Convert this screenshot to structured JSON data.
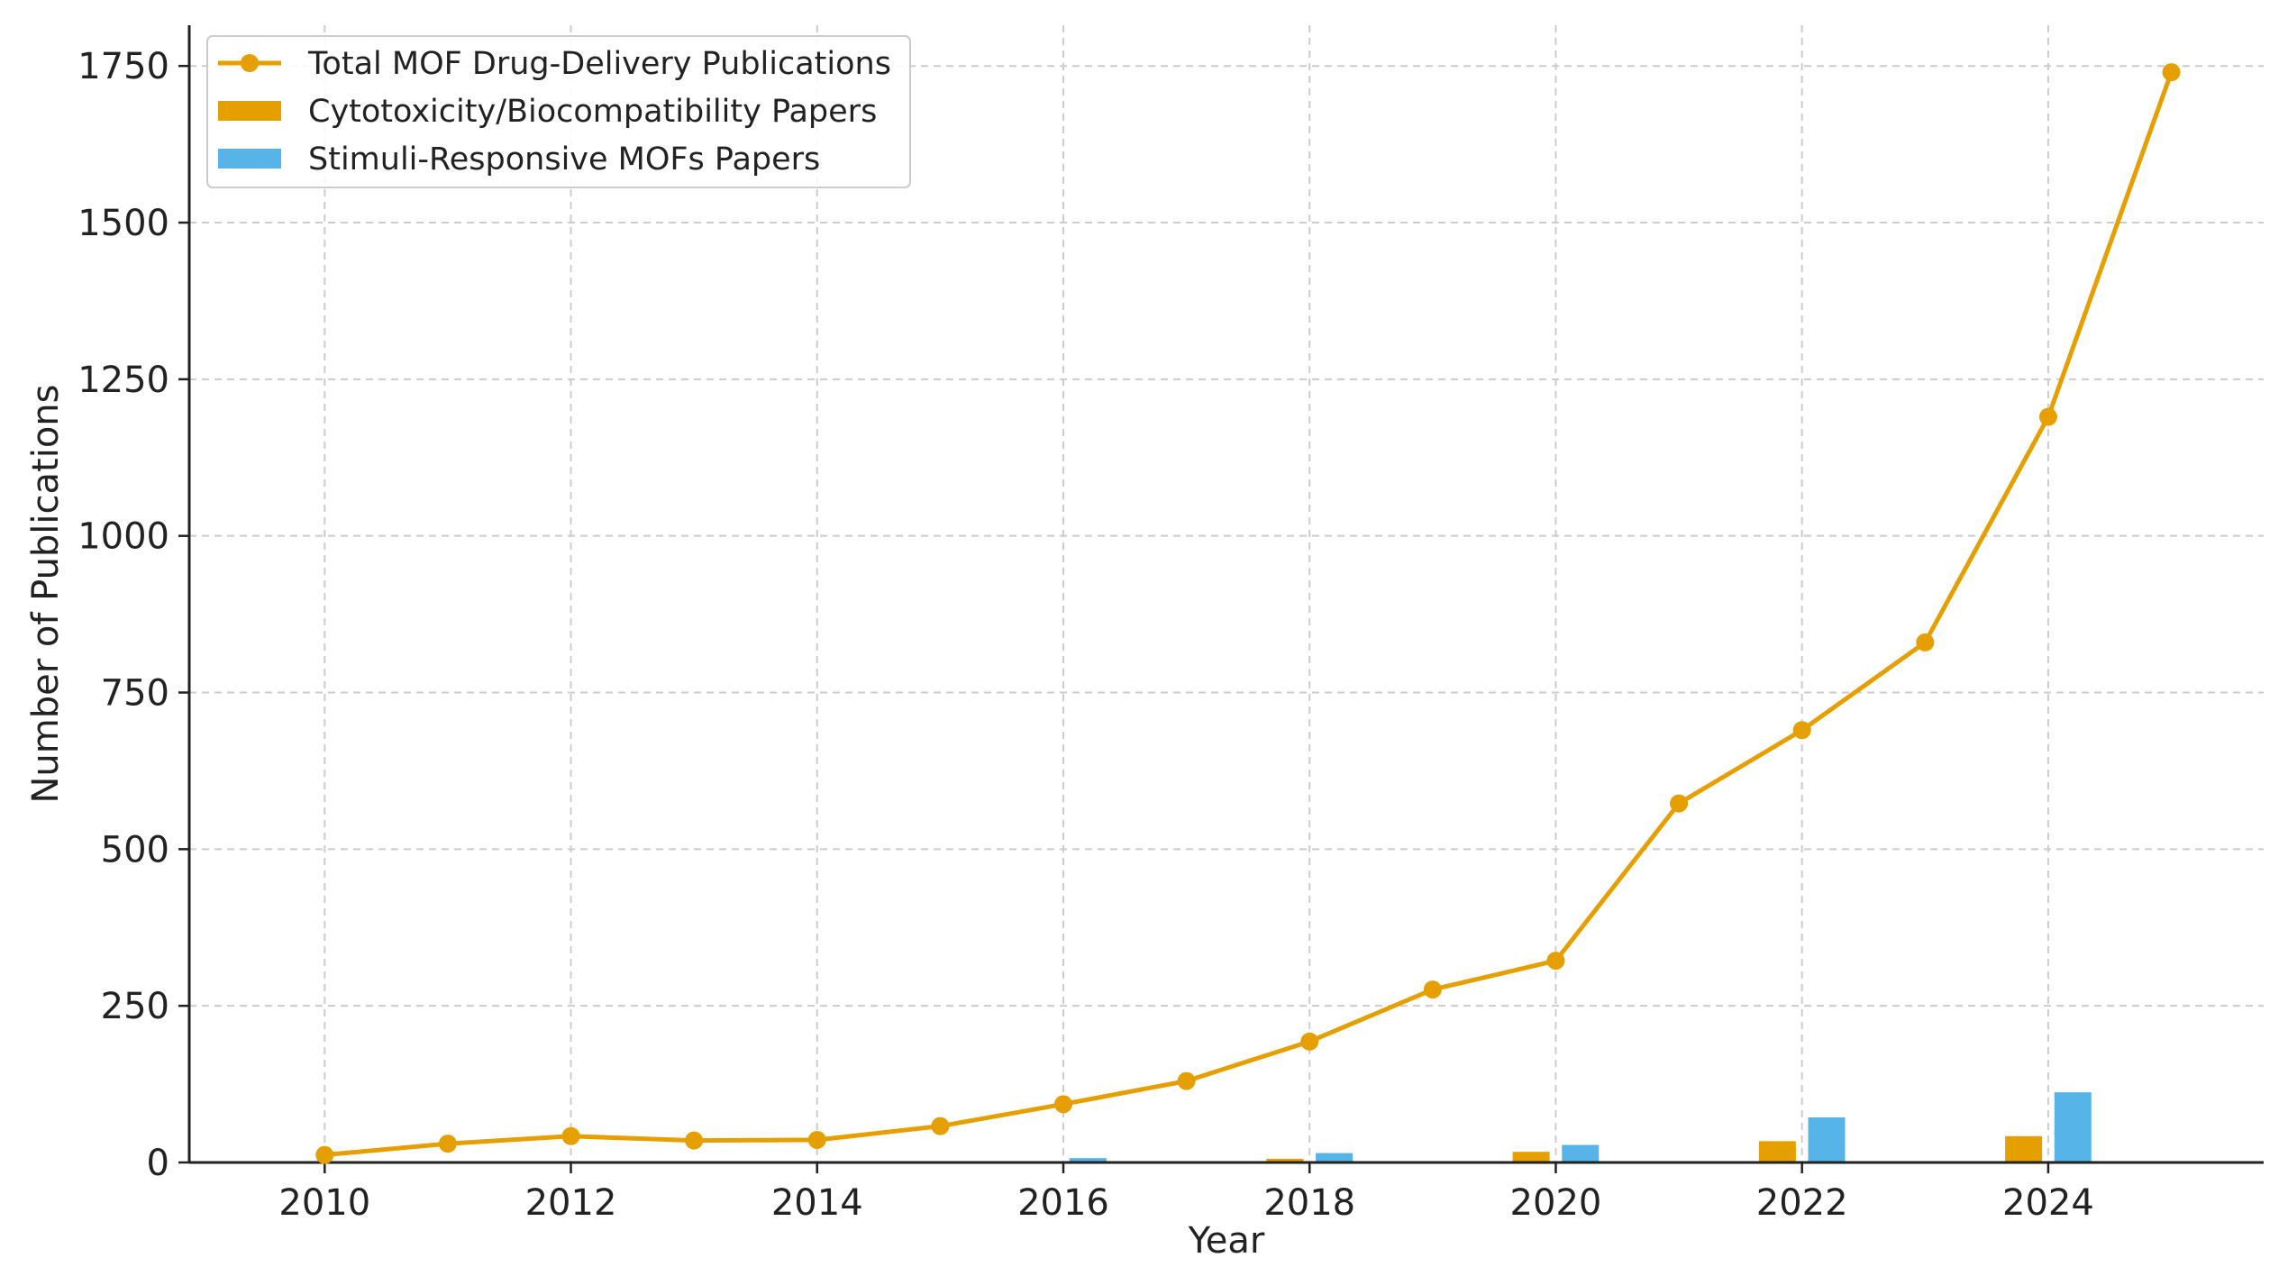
{
  "chart_data": {
    "type": "line",
    "title": "",
    "xlabel": "Year",
    "ylabel": "Number of Publications",
    "xlim": [
      2008.9,
      2025.75
    ],
    "ylim": [
      0,
      1815
    ],
    "x_ticks": [
      2010,
      2012,
      2014,
      2016,
      2018,
      2020,
      2022,
      2024
    ],
    "y_ticks": [
      0,
      250,
      500,
      750,
      1000,
      1250,
      1500,
      1750
    ],
    "grid": true,
    "legend_position": "top-left",
    "series": [
      {
        "name": "Total MOF Drug-Delivery Publications",
        "type": "line",
        "color": "#E69F00",
        "marker": "circle",
        "x": [
          2010,
          2011,
          2012,
          2013,
          2014,
          2015,
          2016,
          2017,
          2018,
          2019,
          2020,
          2021,
          2022,
          2023,
          2024,
          2025
        ],
        "values": [
          12,
          30,
          42,
          35,
          36,
          58,
          93,
          130,
          193,
          276,
          322,
          573,
          690,
          830,
          1190,
          1740
        ]
      },
      {
        "name": "Cytotoxicity/Biocompatibility Papers",
        "type": "bar",
        "color": "#E69F00",
        "offset": -0.2,
        "x": [
          2016,
          2018,
          2020,
          2022,
          2024
        ],
        "values": [
          2,
          6,
          17,
          34,
          42
        ]
      },
      {
        "name": "Stimuli-Responsive MOFs Papers",
        "type": "bar",
        "color": "#56B4E9",
        "offset": 0.2,
        "x": [
          2016,
          2018,
          2020,
          2022,
          2024
        ],
        "values": [
          7,
          15,
          28,
          72,
          112
        ]
      }
    ]
  }
}
